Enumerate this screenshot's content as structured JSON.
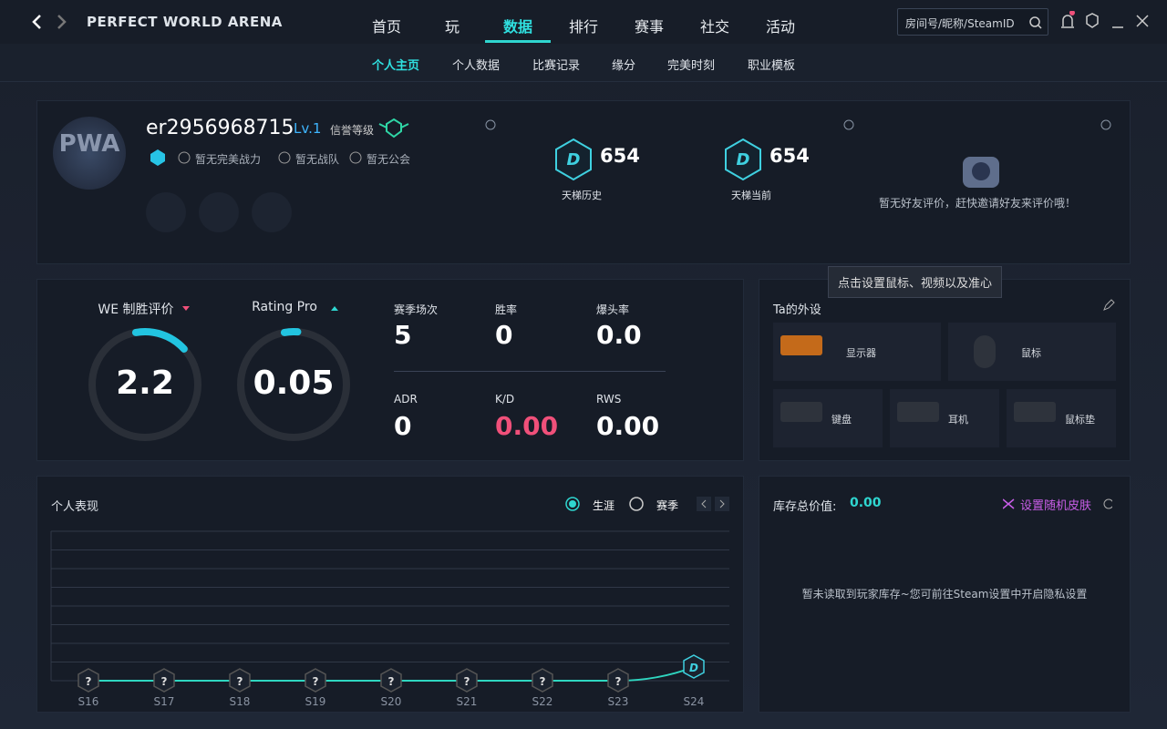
{
  "header": {
    "title": "PERFECT WORLD ARENA",
    "nav": [
      "首页",
      "玩",
      "数据",
      "排行",
      "赛事",
      "社交",
      "活动"
    ],
    "search_placeholder": "房间号/昵称/SteamID"
  },
  "subnav": [
    "个人主页",
    "个人数据",
    "比赛记录",
    "缘分",
    "完美时刻",
    "职业模板"
  ],
  "profile": {
    "avatar_text": "PWA",
    "username": "er2956968715",
    "level": "Lv.1",
    "credit_label": "信誉等级",
    "badges": [
      "暂无完美战力",
      "暂无战队",
      "暂无公会"
    ]
  },
  "ladder": [
    {
      "rank": "D",
      "value": "654",
      "label": "天梯历史"
    },
    {
      "rank": "D",
      "value": "654",
      "label": "天梯当前"
    }
  ],
  "friend_review": "暂无好友评价，赶快邀请好友来评价哦！",
  "tooltip": "点击设置鼠标、视频以及准心",
  "ratings": [
    {
      "label": "WE 制胜评价",
      "value": "2.2"
    },
    {
      "label": "Rating Pro",
      "value": "0.05"
    }
  ],
  "stats": [
    {
      "label": "赛季场次",
      "value": "5"
    },
    {
      "label": "胜率",
      "value": "0"
    },
    {
      "label": "爆头率",
      "value": "0.0"
    },
    {
      "label": "ADR",
      "value": "0"
    },
    {
      "label": "K/D",
      "value": "0.00"
    },
    {
      "label": "RWS",
      "value": "0.00"
    }
  ],
  "gear": {
    "title": "Ta的外设",
    "items": [
      "显示器",
      "鼠标",
      "键盘",
      "耳机",
      "鼠标垫"
    ]
  },
  "performance": {
    "title": "个人表现",
    "options": [
      "生涯",
      "赛季"
    ],
    "seasons": [
      "S16",
      "S17",
      "S18",
      "S19",
      "S20",
      "S21",
      "S22",
      "S23",
      "S24"
    ],
    "ranks": [
      "?",
      "?",
      "?",
      "?",
      "?",
      "?",
      "?",
      "?",
      "D"
    ]
  },
  "inventory": {
    "label": "库存总价值:",
    "value": "0.00",
    "random_skin": "设置随机皮肤",
    "empty": "暂未读取到玩家库存~您可前往Steam设置中开启隐私设置"
  }
}
